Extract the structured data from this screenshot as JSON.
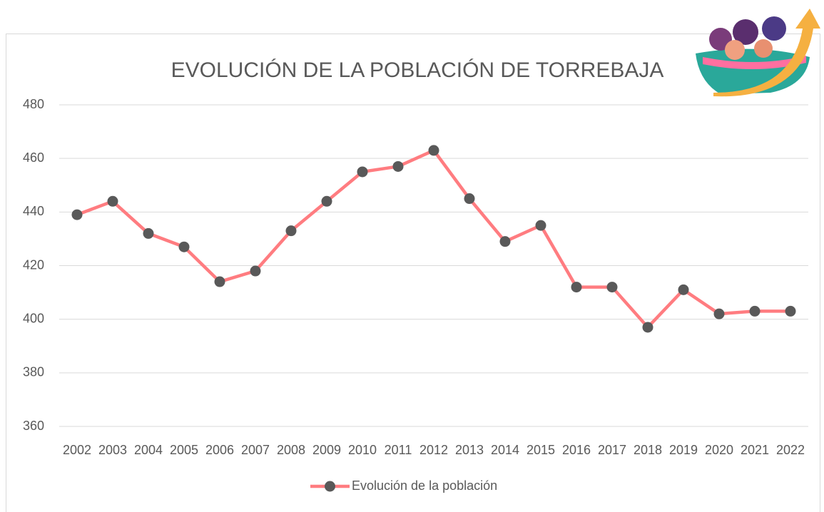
{
  "chart_data": {
    "type": "line",
    "title": "EVOLUCIÓN DE LA POBLACIÓN DE TORREBAJA",
    "categories": [
      "2002",
      "2003",
      "2004",
      "2005",
      "2006",
      "2007",
      "2008",
      "2009",
      "2010",
      "2011",
      "2012",
      "2013",
      "2014",
      "2015",
      "2016",
      "2017",
      "2018",
      "2019",
      "2020",
      "2021",
      "2022"
    ],
    "series": [
      {
        "name": "Evolución de la población",
        "color": "#ff7c80",
        "marker_color": "#595959",
        "values": [
          439,
          444,
          432,
          427,
          414,
          418,
          433,
          444,
          455,
          457,
          463,
          445,
          429,
          435,
          412,
          412,
          397,
          411,
          402,
          403,
          403
        ]
      }
    ],
    "ylim": [
      360,
      480
    ],
    "yticks": [
      360,
      380,
      400,
      420,
      440,
      460,
      480
    ],
    "grid": true,
    "legend": "bottom"
  }
}
